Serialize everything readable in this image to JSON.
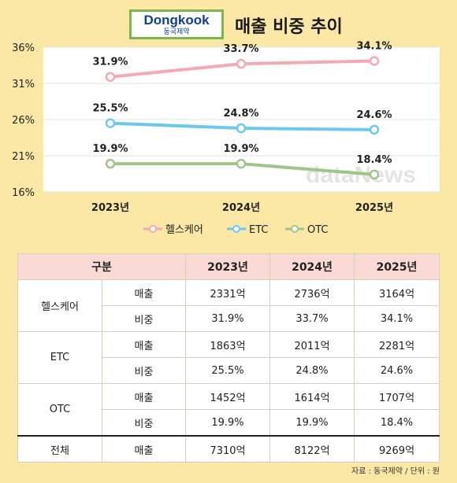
{
  "header": {
    "logo_main": "Dongkook",
    "logo_sub": "동국제약",
    "title": "매출 비중 추이"
  },
  "chart_data": {
    "type": "line",
    "x": [
      "2023년",
      "2024년",
      "2025년"
    ],
    "yticks": [
      "36%",
      "31%",
      "26%",
      "21%",
      "16%"
    ],
    "ylim": [
      16,
      36
    ],
    "grid": true,
    "legend_position": "bottom",
    "series": [
      {
        "name": "헬스케어",
        "values": [
          31.9,
          33.7,
          34.1
        ],
        "labels": [
          "31.9%",
          "33.7%",
          "34.1%"
        ],
        "color": "#f4a9b4"
      },
      {
        "name": "ETC",
        "values": [
          25.5,
          24.8,
          24.6
        ],
        "labels": [
          "25.5%",
          "24.8%",
          "24.6%"
        ],
        "color": "#6cc8ee"
      },
      {
        "name": "OTC",
        "values": [
          19.9,
          19.9,
          18.4
        ],
        "labels": [
          "19.9%",
          "19.9%",
          "18.4%"
        ],
        "color": "#9ec58a"
      }
    ],
    "watermark": "dataNews"
  },
  "table": {
    "headers": [
      "구분",
      "2023년",
      "2024년",
      "2025년"
    ],
    "groups": [
      {
        "name": "헬스케어",
        "rows": [
          {
            "label": "매출",
            "values": [
              "2331억",
              "2736억",
              "3164억"
            ]
          },
          {
            "label": "비중",
            "values": [
              "31.9%",
              "33.7%",
              "34.1%"
            ]
          }
        ]
      },
      {
        "name": "ETC",
        "rows": [
          {
            "label": "매출",
            "values": [
              "1863억",
              "2011억",
              "2281억"
            ]
          },
          {
            "label": "비중",
            "values": [
              "25.5%",
              "24.8%",
              "24.6%"
            ]
          }
        ]
      },
      {
        "name": "OTC",
        "rows": [
          {
            "label": "매출",
            "values": [
              "1452억",
              "1614억",
              "1707억"
            ]
          },
          {
            "label": "비중",
            "values": [
              "19.9%",
              "19.9%",
              "18.4%"
            ]
          }
        ]
      }
    ],
    "total": {
      "name": "전체",
      "label": "매출",
      "values": [
        "7310억",
        "8122억",
        "9269억"
      ]
    }
  },
  "source": "자료 : 동국제약 / 단위 : 원"
}
